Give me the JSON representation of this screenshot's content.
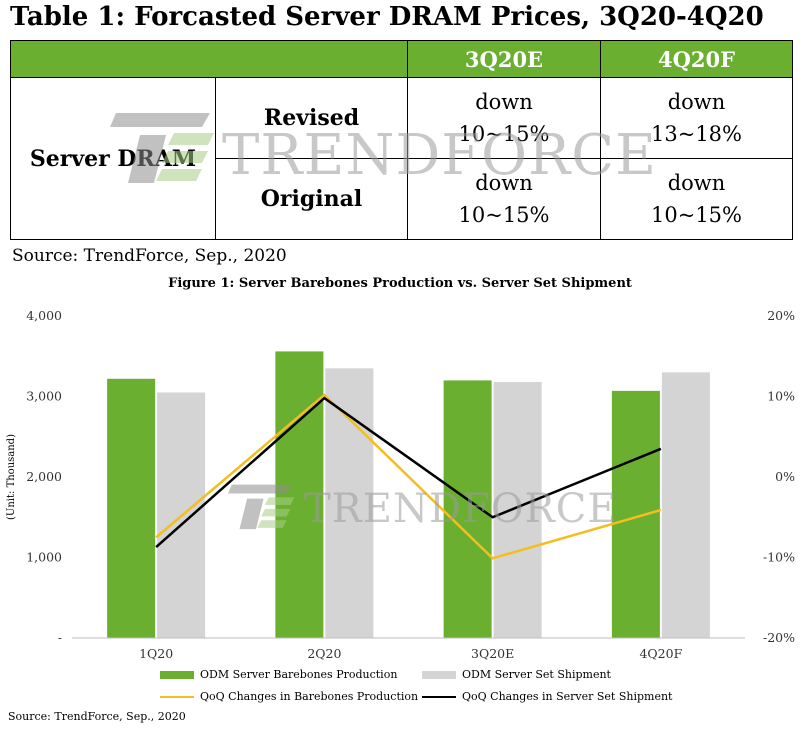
{
  "table": {
    "title": "Table 1: Forcasted Server DRAM Prices, 3Q20-4Q20",
    "columns": [
      "",
      "",
      "3Q20E",
      "4Q20F"
    ],
    "row_label": "Server DRAM",
    "rows": [
      {
        "label": "Revised",
        "q3_line1": "down",
        "q3_line2": "10~15%",
        "q4_line1": "down",
        "q4_line2": "13~18%"
      },
      {
        "label": "Original",
        "q3_line1": "down",
        "q3_line2": "10~15%",
        "q4_line1": "down",
        "q4_line2": "10~15%"
      }
    ],
    "source": "Source: TrendForce, Sep., 2020",
    "header_color": "#6aaf2f"
  },
  "watermark": {
    "text": "TRENDFORCE",
    "name": "trendforce-logo-icon"
  },
  "chart_data": {
    "type": "bar",
    "title": "Figure 1: Server Barebones Production vs. Server Set Shipment",
    "ylabel": "(Unit: Thousand)",
    "categories": [
      "1Q20",
      "2Q20",
      "3Q20E",
      "4Q20F"
    ],
    "ylim": [
      0,
      4000
    ],
    "y_ticks": [
      "-",
      "1,000",
      "2,000",
      "3,000",
      "4,000"
    ],
    "y_tick_values": [
      0,
      1000,
      2000,
      3000,
      4000
    ],
    "y2lim": [
      -20,
      20
    ],
    "y2_ticks": [
      "-20%",
      "-10%",
      "0%",
      "10%",
      "20%"
    ],
    "y2_tick_values": [
      -20,
      -10,
      0,
      10,
      20
    ],
    "series": [
      {
        "name": "ODM Server Barebones Production",
        "kind": "bar",
        "axis": "left",
        "color": "#6aaf2f",
        "values": [
          3220,
          3560,
          3200,
          3070
        ]
      },
      {
        "name": "ODM Server Set Shipment",
        "kind": "bar",
        "axis": "left",
        "color": "#d4d4d4",
        "values": [
          3050,
          3350,
          3180,
          3300
        ]
      },
      {
        "name": "QoQ Changes in Barebones Production",
        "kind": "line",
        "axis": "right",
        "color": "#f5bd1f",
        "values": [
          -7.5,
          10.2,
          -10.1,
          -4.1
        ]
      },
      {
        "name": "QoQ Changes in Server Set Shipment",
        "kind": "line",
        "axis": "right",
        "color": "#000000",
        "values": [
          -8.7,
          9.8,
          -5.0,
          3.5
        ]
      }
    ],
    "grid": false,
    "legend_position": "bottom"
  },
  "chart_source": "Source: TrendForce, Sep., 2020"
}
